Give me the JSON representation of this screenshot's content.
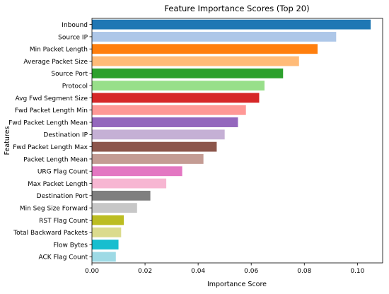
{
  "chart_data": {
    "type": "bar",
    "orientation": "horizontal",
    "title": "Feature Importance Scores (Top 20)",
    "xlabel": "Importance Score",
    "ylabel": "Features",
    "xlim": [
      0,
      0.1095
    ],
    "xticks": [
      0.0,
      0.02,
      0.04,
      0.06,
      0.08,
      0.1
    ],
    "xtick_labels": [
      "0.00",
      "0.02",
      "0.04",
      "0.06",
      "0.08",
      "0.10"
    ],
    "grid": false,
    "legend": "none",
    "categories": [
      "Inbound",
      "Source IP",
      "Min Packet Length",
      "Average Packet Size",
      "Source Port",
      "Protocol",
      "Avg Fwd Segment Size",
      "Fwd Packet Length Min",
      "Fwd Packet Length Mean",
      "Destination IP",
      "Fwd Packet Length Max",
      "Packet Length Mean",
      "URG Flag Count",
      "Max Packet Length",
      "Destination Port",
      "Min Seg Size Forward",
      "RST Flag Count",
      "Total Backward Packets",
      "Flow Bytes",
      "ACK Flag Count"
    ],
    "values": [
      0.105,
      0.092,
      0.085,
      0.078,
      0.072,
      0.065,
      0.063,
      0.058,
      0.055,
      0.05,
      0.047,
      0.042,
      0.034,
      0.028,
      0.022,
      0.017,
      0.012,
      0.011,
      0.01,
      0.009
    ],
    "colors": [
      "#1f77b4",
      "#aec7e8",
      "#ff7f0e",
      "#ffbb78",
      "#2ca02c",
      "#98df8a",
      "#d62728",
      "#ff9896",
      "#9467bd",
      "#c5b0d5",
      "#8c564b",
      "#c49c94",
      "#e377c2",
      "#f7b6d2",
      "#7f7f7f",
      "#c7c7c7",
      "#bcbd22",
      "#dbdb8d",
      "#17becf",
      "#9edae5"
    ]
  }
}
